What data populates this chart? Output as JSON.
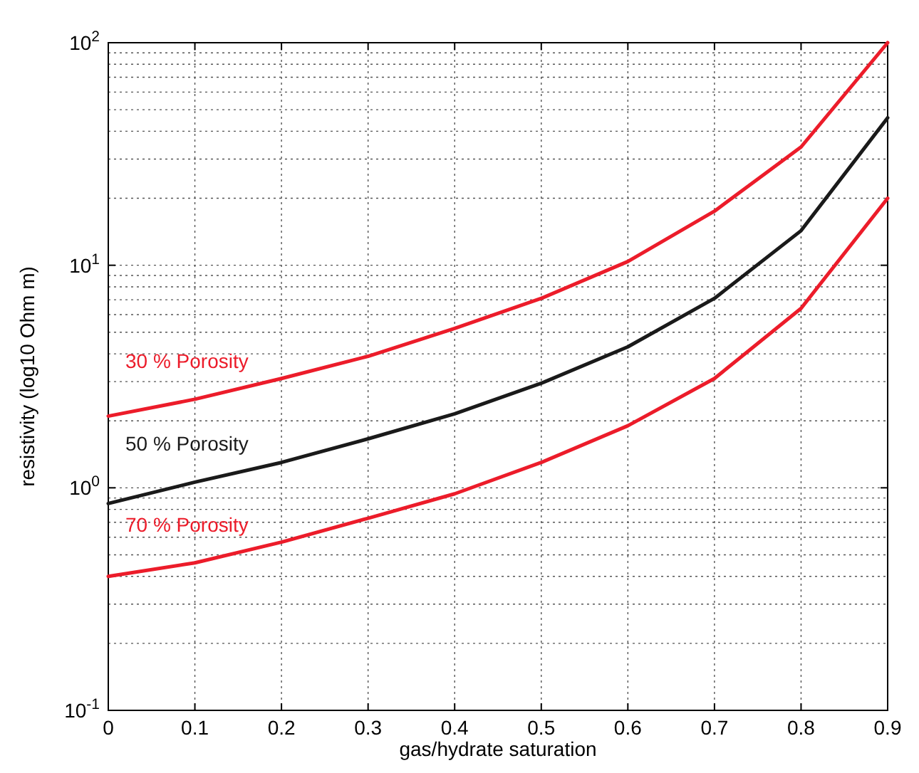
{
  "chart_data": {
    "type": "line",
    "xlabel": "gas/hydrate saturation",
    "ylabel": "resistivity (log10 Ohm m)",
    "x": [
      0,
      0.1,
      0.2,
      0.3,
      0.4,
      0.5,
      0.6,
      0.7,
      0.8,
      0.9
    ],
    "series": [
      {
        "name": "30 % Porosity",
        "color": "#ec1c2a",
        "values": [
          2.1,
          2.5,
          3.1,
          3.9,
          5.2,
          7.1,
          10.4,
          17.5,
          34,
          100
        ]
      },
      {
        "name": "50 % Porosity",
        "color": "#1a1a1a",
        "values": [
          0.85,
          1.06,
          1.3,
          1.66,
          2.15,
          2.95,
          4.3,
          7.1,
          14.3,
          46
        ]
      },
      {
        "name": "70 % Porosity",
        "color": "#ec1c2a",
        "values": [
          0.4,
          0.46,
          0.57,
          0.73,
          0.94,
          1.3,
          1.9,
          3.1,
          6.4,
          20
        ]
      }
    ],
    "log": "y",
    "xlim": [
      0,
      0.9
    ],
    "ylim": [
      0.1,
      100
    ],
    "xticks": [
      0,
      0.1,
      0.2,
      0.3,
      0.4,
      0.5,
      0.6,
      0.7,
      0.8,
      0.9
    ],
    "yticks": [
      {
        "value": 0.1,
        "label": "10$^{-1}$"
      },
      {
        "value": 1,
        "label": "10$^{0}$"
      },
      {
        "value": 10,
        "label": "10$^{1}$"
      },
      {
        "value": 100,
        "label": "10$^{2}$"
      }
    ],
    "grid": true,
    "line_style": "solid",
    "marker": "none"
  }
}
